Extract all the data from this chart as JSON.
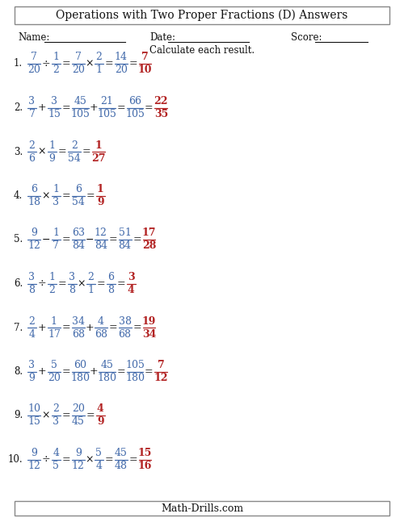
{
  "title": "Operations with Two Proper Fractions (D) Answers",
  "footer": "Math-Drills.com",
  "instruction": "Calculate each result.",
  "name_label": "Name:",
  "date_label": "Date:",
  "score_label": "Score:",
  "blue": "#4169AA",
  "red": "#B22222",
  "black": "#111111",
  "bg": "#FFFFFF",
  "problems": [
    {
      "num": "1.",
      "q": [
        [
          "7",
          "20"
        ],
        "÷",
        [
          "1",
          "2"
        ]
      ],
      "step1": [
        [
          "7",
          "20"
        ],
        "×",
        [
          "2",
          "1"
        ]
      ],
      "step2": [
        "14",
        "20"
      ],
      "ans": [
        "7",
        "10"
      ]
    },
    {
      "num": "2.",
      "q": [
        [
          "3",
          "7"
        ],
        "+",
        [
          "3",
          "15"
        ]
      ],
      "step1": [
        [
          "45",
          "105"
        ],
        "+",
        [
          "21",
          "105"
        ]
      ],
      "step2": [
        "66",
        "105"
      ],
      "ans": [
        "22",
        "35"
      ]
    },
    {
      "num": "3.",
      "q": [
        [
          "2",
          "6"
        ],
        "×",
        [
          "1",
          "9"
        ]
      ],
      "step1": null,
      "step2": [
        "2",
        "54"
      ],
      "ans": [
        "1",
        "27"
      ]
    },
    {
      "num": "4.",
      "q": [
        [
          "6",
          "18"
        ],
        "×",
        [
          "1",
          "3"
        ]
      ],
      "step1": null,
      "step2": [
        "6",
        "54"
      ],
      "ans": [
        "1",
        "9"
      ]
    },
    {
      "num": "5.",
      "q": [
        [
          "9",
          "12"
        ],
        "−",
        [
          "1",
          "7"
        ]
      ],
      "step1": [
        [
          "63",
          "84"
        ],
        "−",
        [
          "12",
          "84"
        ]
      ],
      "step2": [
        "51",
        "84"
      ],
      "ans": [
        "17",
        "28"
      ]
    },
    {
      "num": "6.",
      "q": [
        [
          "3",
          "8"
        ],
        "÷",
        [
          "1",
          "2"
        ]
      ],
      "step1": [
        [
          "3",
          "8"
        ],
        "×",
        [
          "2",
          "1"
        ]
      ],
      "step2": [
        "6",
        "8"
      ],
      "ans": [
        "3",
        "4"
      ]
    },
    {
      "num": "7.",
      "q": [
        [
          "2",
          "4"
        ],
        "+",
        [
          "1",
          "17"
        ]
      ],
      "step1": [
        [
          "34",
          "68"
        ],
        "+",
        [
          "4",
          "68"
        ]
      ],
      "step2": [
        "38",
        "68"
      ],
      "ans": [
        "19",
        "34"
      ]
    },
    {
      "num": "8.",
      "q": [
        [
          "3",
          "9"
        ],
        "+",
        [
          "5",
          "20"
        ]
      ],
      "step1": [
        [
          "60",
          "180"
        ],
        "+",
        [
          "45",
          "180"
        ]
      ],
      "step2": [
        "105",
        "180"
      ],
      "ans": [
        "7",
        "12"
      ]
    },
    {
      "num": "9.",
      "q": [
        [
          "10",
          "15"
        ],
        "×",
        [
          "2",
          "3"
        ]
      ],
      "step1": null,
      "step2": [
        "20",
        "45"
      ],
      "ans": [
        "4",
        "9"
      ]
    },
    {
      "num": "10.",
      "q": [
        [
          "9",
          "12"
        ],
        "÷",
        [
          "4",
          "5"
        ]
      ],
      "step1": [
        [
          "9",
          "12"
        ],
        "×",
        [
          "5",
          "4"
        ]
      ],
      "step2": [
        "45",
        "48"
      ],
      "ans": [
        "15",
        "16"
      ]
    }
  ]
}
